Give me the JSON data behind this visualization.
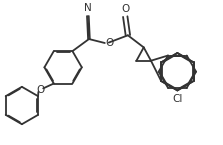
{
  "background": "#ffffff",
  "line_color": "#333333",
  "lw": 1.3,
  "dbo": 0.035,
  "fs": 7.5,
  "label_N": "N",
  "label_O1": "O",
  "label_O2": "O",
  "label_O3": "O",
  "label_Cl": "Cl",
  "xlim": [
    0,
    10
  ],
  "ylim": [
    0,
    6.5
  ]
}
